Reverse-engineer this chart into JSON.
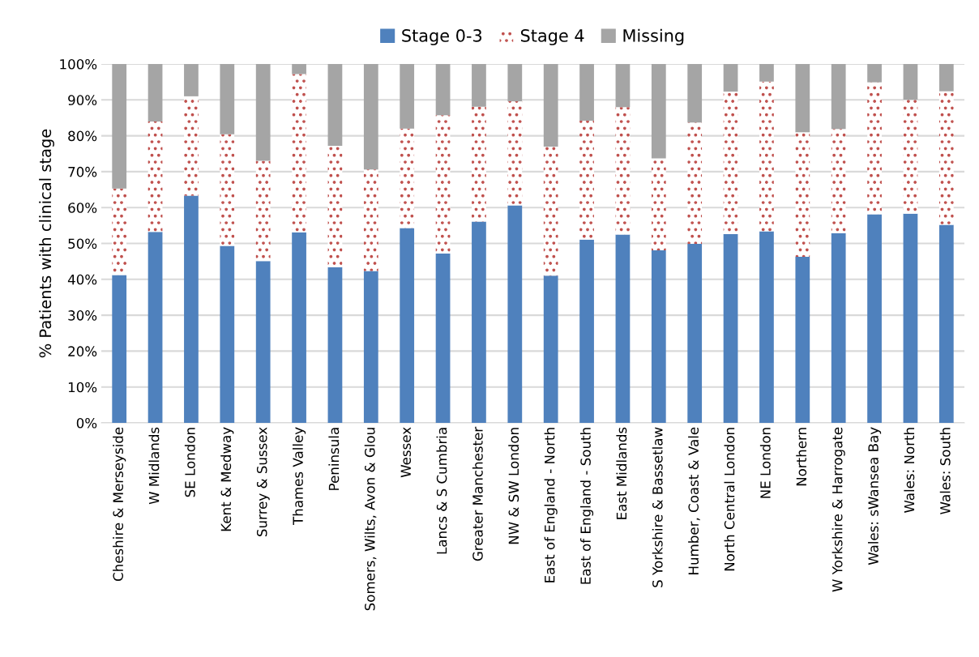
{
  "chart_data": {
    "type": "bar",
    "stacked": true,
    "ylabel": "% Patients with clinical stage",
    "categories": [
      "Cheshire & Merseyside",
      "W Midlands",
      "SE London",
      "Kent & Medway",
      "Surrey & Sussex",
      "Thames Valley",
      "Peninsula",
      "Somers, Wilts, Avon & Glou",
      "Wessex",
      "Lancs & S Cumbria",
      "Greater Manchester",
      "NW & SW London",
      "East of England - North",
      "East of England - South",
      "East Midlands",
      "S Yorkshire & Bassetlaw",
      "Humber, Coast & Vale",
      "North Central London",
      "NE London",
      "Northern",
      "W Yorkshire & Harrogate",
      "Wales: sWansea Bay",
      "Wales: North",
      "Wales: South"
    ],
    "series": [
      {
        "name": "Stage 0-3",
        "color": "#4f81bd",
        "values": [
          41.2,
          53.2,
          63.3,
          49.3,
          45.1,
          53.1,
          43.4,
          42.3,
          54.3,
          47.2,
          56.1,
          60.6,
          41.0,
          51.1,
          52.5,
          48.1,
          49.9,
          52.6,
          53.4,
          46.3,
          52.9,
          58.1,
          58.3,
          55.2
        ]
      },
      {
        "name": "Stage 4",
        "color": "#c0504d",
        "values": [
          24.1,
          30.8,
          27.7,
          31.1,
          27.9,
          44.1,
          33.8,
          28.3,
          27.7,
          38.5,
          32.0,
          29.0,
          36.0,
          33.1,
          35.5,
          25.6,
          33.8,
          39.7,
          41.7,
          34.7,
          29.0,
          36.8,
          31.7,
          37.2
        ]
      },
      {
        "name": "Missing",
        "color": "#a5a5a5",
        "values": [
          34.7,
          16.0,
          9.0,
          19.6,
          27.0,
          2.8,
          22.8,
          29.4,
          18.0,
          14.3,
          11.9,
          10.4,
          23.0,
          15.8,
          12.0,
          26.3,
          16.3,
          7.7,
          4.9,
          19.0,
          18.1,
          5.1,
          10.0,
          7.6
        ]
      }
    ],
    "ylim": [
      0,
      100
    ],
    "yticks": [
      {
        "value": 0,
        "label": "0%"
      },
      {
        "value": 10,
        "label": "10%"
      },
      {
        "value": 20,
        "label": "20%"
      },
      {
        "value": 30,
        "label": "30%"
      },
      {
        "value": 40,
        "label": "40%"
      },
      {
        "value": 50,
        "label": "50%"
      },
      {
        "value": 60,
        "label": "60%"
      },
      {
        "value": 70,
        "label": "70%"
      },
      {
        "value": 80,
        "label": "80%"
      },
      {
        "value": 90,
        "label": "90%"
      },
      {
        "value": 100,
        "label": "100%"
      }
    ],
    "grid": "y",
    "legend": "top"
  }
}
